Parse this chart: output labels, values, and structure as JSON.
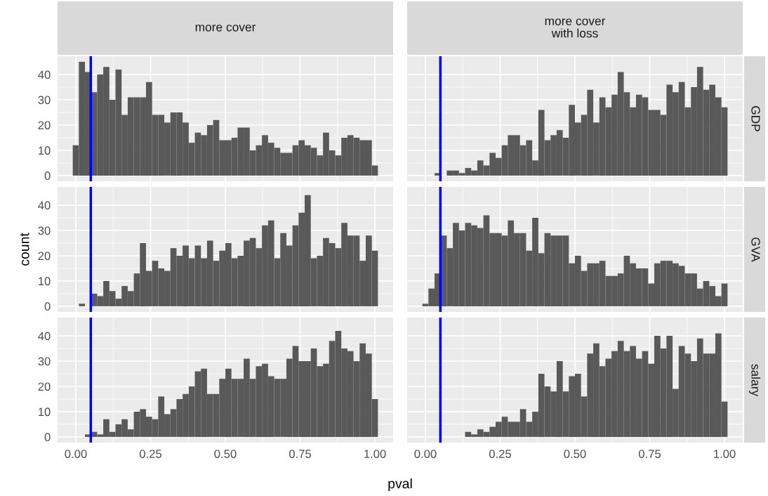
{
  "chart_data": [
    {
      "type": "histogram",
      "title": "more cover",
      "color": "#595959",
      "bins": [
        -0.0102,
        0.0102,
        0.0306,
        0.051,
        0.0714,
        0.0918,
        0.1122,
        0.1327,
        0.1531,
        0.1735,
        0.1939,
        0.2143,
        0.2347,
        0.2551,
        0.2755,
        0.2959,
        0.3163,
        0.3367,
        0.3571,
        0.3776,
        0.398,
        0.4184,
        0.4388,
        0.4592,
        0.4796,
        0.5,
        0.5204,
        0.5408,
        0.5612,
        0.5816,
        0.602,
        0.6224,
        0.6429,
        0.6633,
        0.6837,
        0.7041,
        0.7245,
        0.7449,
        0.7653,
        0.7857,
        0.8061,
        0.8265,
        0.8469,
        0.8673,
        0.8878,
        0.9082,
        0.9286,
        0.949,
        0.9694,
        0.9898,
        1.0102
      ],
      "values": [
        12,
        45,
        41,
        33,
        40,
        43,
        30,
        42,
        24,
        31,
        31,
        31,
        37,
        24,
        24,
        21,
        25,
        25,
        21,
        13,
        17,
        16,
        20,
        22,
        14,
        14,
        15,
        19,
        19,
        10,
        12,
        16,
        13,
        11,
        9,
        9,
        12,
        14,
        12,
        11,
        8,
        17,
        10,
        8,
        15,
        16,
        15,
        14,
        14,
        4
      ],
      "xlim": [
        -0.061,
        1.061
      ],
      "ylim": [
        -2.25,
        47.25
      ],
      "xticks": [
        0,
        0.25,
        0.5,
        0.75,
        1
      ],
      "yticks": [
        0,
        10,
        20,
        30,
        40
      ],
      "grid": true,
      "tick_labels": "y",
      "ref_lines": [
        {
          "axis": "x",
          "value": 0.05,
          "color": "#0000ff"
        }
      ]
    },
    {
      "type": "histogram",
      "title": "more cover\nwith loss",
      "y2label": "GDP",
      "color": "#595959",
      "bins": [
        -0.0102,
        0.0102,
        0.0306,
        0.051,
        0.0714,
        0.0918,
        0.1122,
        0.1327,
        0.1531,
        0.1735,
        0.1939,
        0.2143,
        0.2347,
        0.2551,
        0.2755,
        0.2959,
        0.3163,
        0.3367,
        0.3571,
        0.3776,
        0.398,
        0.4184,
        0.4388,
        0.4592,
        0.4796,
        0.5,
        0.5204,
        0.5408,
        0.5612,
        0.5816,
        0.602,
        0.6224,
        0.6429,
        0.6633,
        0.6837,
        0.7041,
        0.7245,
        0.7449,
        0.7653,
        0.7857,
        0.8061,
        0.8265,
        0.8469,
        0.8673,
        0.8878,
        0.9082,
        0.9286,
        0.949,
        0.9694,
        0.9898,
        1.0102
      ],
      "values": [
        0,
        0,
        1,
        0,
        2,
        2,
        1,
        3,
        2,
        6,
        4,
        9,
        7,
        12,
        16,
        16,
        12,
        14,
        6,
        26,
        14,
        16,
        18,
        15,
        28,
        21,
        24,
        34,
        21,
        31,
        27,
        32,
        41,
        33,
        27,
        32,
        31,
        26,
        26,
        24,
        36,
        33,
        37,
        27,
        35,
        43,
        34,
        36,
        31,
        27
      ],
      "xlim": [
        -0.061,
        1.061
      ],
      "ylim": [
        -2.25,
        47.25
      ],
      "xticks": [
        0,
        0.25,
        0.5,
        0.75,
        1
      ],
      "yticks": [
        0,
        10,
        20,
        30,
        40
      ],
      "grid": true,
      "tick_labels": false,
      "ref_lines": [
        {
          "axis": "x",
          "value": 0.05,
          "color": "#0000ff"
        }
      ]
    },
    {
      "type": "histogram",
      "ylabel": "count",
      "color": "#595959",
      "bins": [
        -0.0102,
        0.0102,
        0.0306,
        0.051,
        0.0714,
        0.0918,
        0.1122,
        0.1327,
        0.1531,
        0.1735,
        0.1939,
        0.2143,
        0.2347,
        0.2551,
        0.2755,
        0.2959,
        0.3163,
        0.3367,
        0.3571,
        0.3776,
        0.398,
        0.4184,
        0.4388,
        0.4592,
        0.4796,
        0.5,
        0.5204,
        0.5408,
        0.5612,
        0.5816,
        0.602,
        0.6224,
        0.6429,
        0.6633,
        0.6837,
        0.7041,
        0.7245,
        0.7449,
        0.7653,
        0.7857,
        0.8061,
        0.8265,
        0.8469,
        0.8673,
        0.8878,
        0.9082,
        0.9286,
        0.949,
        0.9694,
        0.9898,
        1.0102
      ],
      "values": [
        0,
        1,
        0,
        5,
        4,
        10,
        6,
        3,
        8,
        6,
        13,
        25,
        14,
        18,
        15,
        14,
        23,
        20,
        24,
        19,
        24,
        19,
        26,
        18,
        22,
        25,
        19,
        20,
        26,
        27,
        23,
        32,
        34,
        19,
        29,
        24,
        32,
        37,
        44,
        19,
        20,
        27,
        25,
        23,
        33,
        28,
        28,
        18,
        28,
        22
      ],
      "xlim": [
        -0.061,
        1.061
      ],
      "ylim": [
        -2.25,
        47.25
      ],
      "xticks": [
        0,
        0.25,
        0.5,
        0.75,
        1
      ],
      "yticks": [
        0,
        10,
        20,
        30,
        40
      ],
      "grid": true,
      "tick_labels": "y",
      "ref_lines": [
        {
          "axis": "x",
          "value": 0.05,
          "color": "#0000ff"
        }
      ]
    },
    {
      "type": "histogram",
      "y2label": "GVA",
      "color": "#595959",
      "bins": [
        -0.0102,
        0.0102,
        0.0306,
        0.051,
        0.0714,
        0.0918,
        0.1122,
        0.1327,
        0.1531,
        0.1735,
        0.1939,
        0.2143,
        0.2347,
        0.2551,
        0.2755,
        0.2959,
        0.3163,
        0.3367,
        0.3571,
        0.3776,
        0.398,
        0.4184,
        0.4388,
        0.4592,
        0.4796,
        0.5,
        0.5204,
        0.5408,
        0.5612,
        0.5816,
        0.602,
        0.6224,
        0.6429,
        0.6633,
        0.6837,
        0.7041,
        0.7245,
        0.7449,
        0.7653,
        0.7857,
        0.8061,
        0.8265,
        0.8469,
        0.8673,
        0.8878,
        0.9082,
        0.9286,
        0.949,
        0.9694,
        0.9898,
        1.0102
      ],
      "values": [
        1,
        7,
        13,
        28,
        23,
        33,
        30,
        33,
        32,
        31,
        36,
        29,
        29,
        28,
        34,
        29,
        29,
        22,
        35,
        21,
        29,
        28,
        28,
        28,
        17,
        20,
        14,
        17,
        17,
        18,
        12,
        12,
        13,
        20,
        17,
        15,
        15,
        9,
        17,
        18,
        18,
        17,
        16,
        13,
        13,
        7,
        10,
        8,
        4,
        9
      ],
      "xlim": [
        -0.061,
        1.061
      ],
      "ylim": [
        -2.25,
        47.25
      ],
      "xticks": [
        0,
        0.25,
        0.5,
        0.75,
        1
      ],
      "yticks": [
        0,
        10,
        20,
        30,
        40
      ],
      "grid": true,
      "tick_labels": false,
      "ref_lines": [
        {
          "axis": "x",
          "value": 0.05,
          "color": "#0000ff"
        }
      ]
    },
    {
      "type": "histogram",
      "xlabel": "pval",
      "color": "#595959",
      "bins": [
        -0.0102,
        0.0102,
        0.0306,
        0.051,
        0.0714,
        0.0918,
        0.1122,
        0.1327,
        0.1531,
        0.1735,
        0.1939,
        0.2143,
        0.2347,
        0.2551,
        0.2755,
        0.2959,
        0.3163,
        0.3367,
        0.3571,
        0.3776,
        0.398,
        0.4184,
        0.4388,
        0.4592,
        0.4796,
        0.5,
        0.5204,
        0.5408,
        0.5612,
        0.5816,
        0.602,
        0.6224,
        0.6429,
        0.6633,
        0.6837,
        0.7041,
        0.7245,
        0.7449,
        0.7653,
        0.7857,
        0.8061,
        0.8265,
        0.8469,
        0.8673,
        0.8878,
        0.9082,
        0.9286,
        0.949,
        0.9694,
        0.9898,
        1.0102
      ],
      "values": [
        0,
        0,
        1,
        2,
        1,
        7,
        2,
        5,
        7,
        3,
        10,
        11,
        8,
        7,
        16,
        9,
        11,
        15,
        17,
        20,
        26,
        27,
        17,
        17,
        23,
        27,
        23,
        23,
        31,
        23,
        28,
        29,
        24,
        23,
        23,
        31,
        36,
        30,
        30,
        35,
        28,
        29,
        38,
        42,
        35,
        34,
        30,
        37,
        33,
        15
      ],
      "xlim": [
        -0.061,
        1.061
      ],
      "ylim": [
        -2.25,
        47.25
      ],
      "xticks": [
        {
          "value": 0,
          "label": "0.00"
        },
        {
          "value": 0.25,
          "label": "0.25"
        },
        {
          "value": 0.5,
          "label": "0.50"
        },
        {
          "value": 0.75,
          "label": "0.75"
        },
        {
          "value": 1,
          "label": "1.00"
        }
      ],
      "yticks": [
        0,
        10,
        20,
        30,
        40
      ],
      "grid": true,
      "ref_lines": [
        {
          "axis": "x",
          "value": 0.05,
          "color": "#0000ff"
        }
      ]
    },
    {
      "type": "histogram",
      "y2label": "salary",
      "color": "#595959",
      "bins": [
        -0.0102,
        0.0102,
        0.0306,
        0.051,
        0.0714,
        0.0918,
        0.1122,
        0.1327,
        0.1531,
        0.1735,
        0.1939,
        0.2143,
        0.2347,
        0.2551,
        0.2755,
        0.2959,
        0.3163,
        0.3367,
        0.3571,
        0.3776,
        0.398,
        0.4184,
        0.4388,
        0.4592,
        0.4796,
        0.5,
        0.5204,
        0.5408,
        0.5612,
        0.5816,
        0.602,
        0.6224,
        0.6429,
        0.6633,
        0.6837,
        0.7041,
        0.7245,
        0.7449,
        0.7653,
        0.7857,
        0.8061,
        0.8265,
        0.8469,
        0.8673,
        0.8878,
        0.9082,
        0.9286,
        0.949,
        0.9694,
        0.9898,
        1.0102
      ],
      "values": [
        0,
        0,
        0,
        0,
        0,
        0,
        0,
        2,
        1,
        3,
        2,
        4,
        6,
        8,
        6,
        6,
        11,
        6,
        10,
        25,
        20,
        18,
        30,
        18,
        24,
        25,
        16,
        33,
        37,
        28,
        31,
        34,
        38,
        34,
        36,
        31,
        34,
        29,
        40,
        35,
        40,
        19,
        36,
        33,
        30,
        39,
        33,
        33,
        41,
        14
      ],
      "xlim": [
        -0.061,
        1.061
      ],
      "ylim": [
        -2.25,
        47.25
      ],
      "xticks": [
        {
          "value": 0,
          "label": "0.00"
        },
        {
          "value": 0.25,
          "label": "0.25"
        },
        {
          "value": 0.5,
          "label": "0.50"
        },
        {
          "value": 0.75,
          "label": "0.75"
        },
        {
          "value": 1,
          "label": "1.00"
        }
      ],
      "yticks": [
        0,
        10,
        20,
        30,
        40
      ],
      "grid": true,
      "tick_labels": "x",
      "ref_lines": [
        {
          "axis": "x",
          "value": 0.05,
          "color": "#0000ff"
        }
      ]
    }
  ]
}
